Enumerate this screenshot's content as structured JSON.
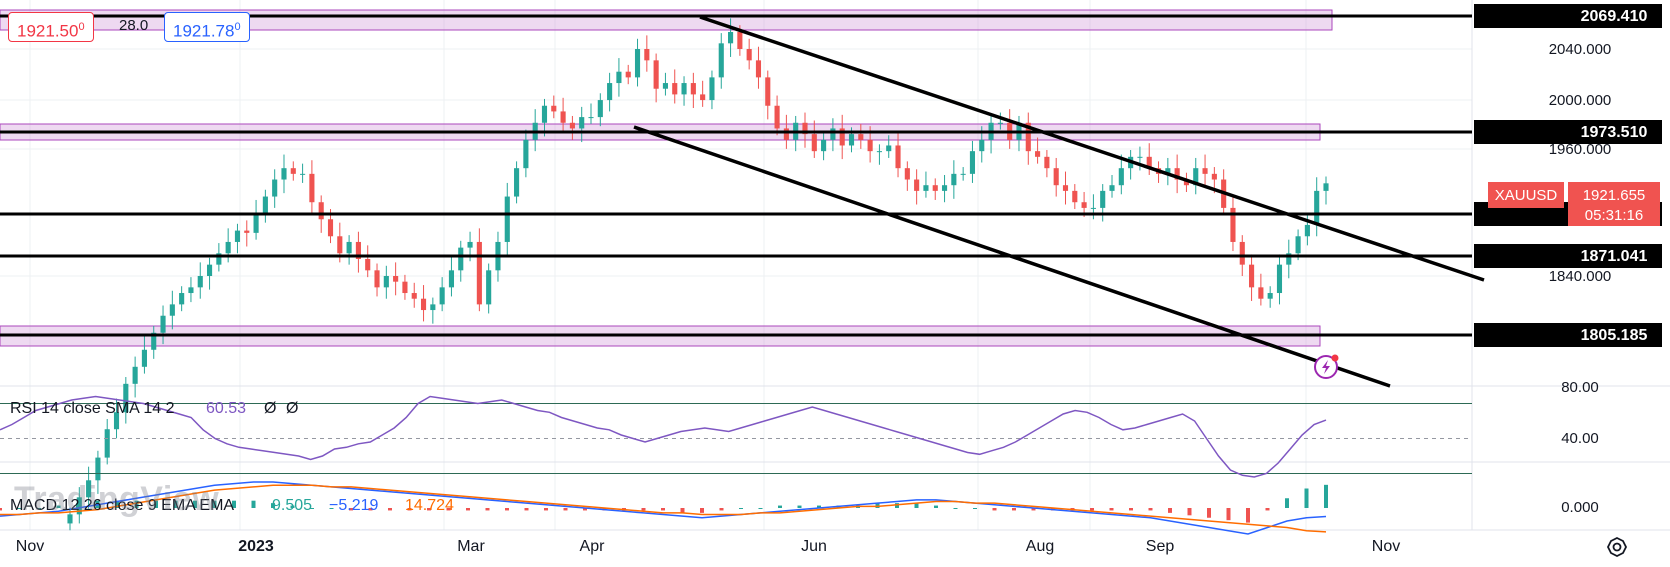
{
  "header": {
    "bid": "1921.50",
    "bid_sup": "0",
    "spread": "28.0",
    "ask": "1921.78",
    "ask_sup": "0"
  },
  "symbol": {
    "name": "XAUUSD",
    "price": "1921.655",
    "countdown": "05:31:16",
    "color": "#f05350"
  },
  "price_axis": {
    "ticks": [
      "2040.000",
      "2000.000",
      "1960.000",
      "1840.000"
    ],
    "level_labels": [
      "2069.410",
      "1973.510",
      "1905.460",
      "1871.041",
      "1805.185"
    ]
  },
  "time_axis": {
    "labels": [
      "Nov",
      "2023",
      "Mar",
      "Apr",
      "Jun",
      "Aug",
      "Sep",
      "Nov"
    ]
  },
  "indicators": {
    "rsi": {
      "label": "RSI 14 close SMA 14 2",
      "value": "60.53",
      "v2": "Ø",
      "v3": "Ø",
      "ticks": [
        "80.00",
        "40.00"
      ],
      "color": "#7e57c2"
    },
    "macd": {
      "label": "MACD 12 26 close 9 EMA EMA",
      "v1": "9.505",
      "v2": "−5.219",
      "v3": "14.724",
      "ticks": [
        "0.000"
      ],
      "color_macd": "#2962ff",
      "color_signal": "#ff6d00",
      "color_hist": "#26a69a"
    }
  },
  "watermark": "TradingView",
  "chart_data": {
    "type": "candlestick",
    "symbol": "XAUUSD",
    "timeframe": "daily",
    "last_price": 1921.655,
    "y_range": [
      1790,
      2085
    ],
    "horizontal_levels": [
      2069.41,
      1973.51,
      1905.46,
      1871.041,
      1805.185
    ],
    "zones": [
      {
        "low": 2055,
        "high": 2075
      },
      {
        "low": 1968,
        "high": 1985
      },
      {
        "low": 1800,
        "high": 1812
      }
    ],
    "trend_lines": [
      {
        "from": [
          "2023-04-14",
          2060
        ],
        "to": [
          "2023-10-31",
          1860
        ]
      },
      {
        "from": [
          "2023-04-01",
          1985
        ],
        "to": [
          "2023-10-31",
          1795
        ]
      }
    ],
    "closes": [
      1630,
      1645,
      1660,
      1680,
      1705,
      1720,
      1745,
      1760,
      1775,
      1790,
      1805,
      1815,
      1825,
      1830,
      1840,
      1850,
      1860,
      1870,
      1880,
      1878,
      1895,
      1910,
      1925,
      1935,
      1930,
      1930,
      1905,
      1890,
      1875,
      1860,
      1870,
      1855,
      1845,
      1830,
      1840,
      1835,
      1825,
      1820,
      1810,
      1815,
      1830,
      1845,
      1865,
      1870,
      1815,
      1845,
      1870,
      1910,
      1935,
      1960,
      1975,
      1990,
      1985,
      1975,
      1970,
      1980,
      1980,
      1995,
      2010,
      2020,
      2015,
      2040,
      2030,
      2005,
      2010,
      2000,
      2010,
      2000,
      1995,
      2015,
      2045,
      2055,
      2040,
      2030,
      2015,
      1990,
      1970,
      1960,
      1975,
      1965,
      1950,
      1960,
      1970,
      1955,
      1965,
      1960,
      1950,
      1950,
      1955,
      1935,
      1925,
      1915,
      1920,
      1915,
      1920,
      1930,
      1930,
      1950,
      1960,
      1975,
      1975,
      1960,
      1975,
      1950,
      1945,
      1935,
      1920,
      1915,
      1905,
      1900,
      1900,
      1915,
      1920,
      1935,
      1945,
      1945,
      1935,
      1930,
      1935,
      1925,
      1920,
      1935,
      1930,
      1925,
      1900,
      1870,
      1850,
      1830,
      1820,
      1825,
      1850,
      1860,
      1875,
      1885,
      1915,
      1921.655
    ],
    "rsi": {
      "values": [
        55,
        58,
        62,
        66,
        68,
        70,
        72,
        73,
        74,
        73,
        72,
        71,
        70,
        68,
        66,
        64,
        62,
        55,
        50,
        47,
        45,
        44,
        43,
        42,
        41,
        40,
        38,
        40,
        44,
        45,
        47,
        48,
        52,
        56,
        62,
        70,
        74,
        73,
        72,
        71,
        70,
        71,
        72,
        70,
        68,
        66,
        65,
        62,
        60,
        58,
        56,
        55,
        52,
        50,
        48,
        50,
        52,
        54,
        55,
        56,
        55,
        54,
        56,
        58,
        60,
        62,
        64,
        66,
        68,
        66,
        64,
        62,
        60,
        58,
        56,
        54,
        52,
        50,
        48,
        46,
        44,
        42,
        41,
        43,
        45,
        48,
        52,
        56,
        60,
        64,
        66,
        65,
        62,
        58,
        55,
        56,
        58,
        60,
        62,
        64,
        60,
        50,
        40,
        32,
        29,
        28,
        30,
        36,
        44,
        52,
        58,
        60.53
      ],
      "levels": [
        70,
        50,
        30
      ],
      "axis_ticks": [
        80,
        40
      ]
    },
    "macd": {
      "macd_line": [
        -5,
        -4,
        -3,
        -2,
        0,
        2,
        4,
        6,
        8,
        10,
        12,
        14,
        15,
        16,
        16,
        15,
        14,
        13,
        12,
        11,
        10,
        9,
        8,
        7,
        6,
        5,
        4,
        3,
        2,
        1,
        0,
        -1,
        -2,
        -3,
        -4,
        -5,
        -6,
        -5,
        -4,
        -3,
        -2,
        -1,
        0,
        1,
        2,
        3,
        4,
        5,
        5,
        4,
        3,
        2,
        1,
        0,
        -1,
        -2,
        -3,
        -4,
        -5,
        -6,
        -8,
        -10,
        -12,
        -14,
        -16,
        -12,
        -8,
        -6,
        -5.219
      ],
      "signal_line": [
        -4,
        -4,
        -3,
        -3,
        -2,
        -1,
        1,
        3,
        5,
        7,
        9,
        11,
        12,
        13,
        14,
        14,
        14,
        13,
        13,
        12,
        11,
        10,
        9,
        8,
        7,
        6,
        5,
        4,
        3,
        2,
        1,
        0,
        -1,
        -2,
        -3,
        -3,
        -4,
        -4,
        -4,
        -3,
        -3,
        -2,
        -1,
        0,
        1,
        1,
        2,
        3,
        4,
        4,
        3,
        3,
        2,
        1,
        0,
        -1,
        -2,
        -3,
        -4,
        -5,
        -6,
        -7,
        -8,
        -9,
        -10,
        -11,
        -12,
        -14,
        -14.724
      ],
      "histogram_last": 9.505,
      "axis_ticks": [
        0
      ]
    }
  }
}
